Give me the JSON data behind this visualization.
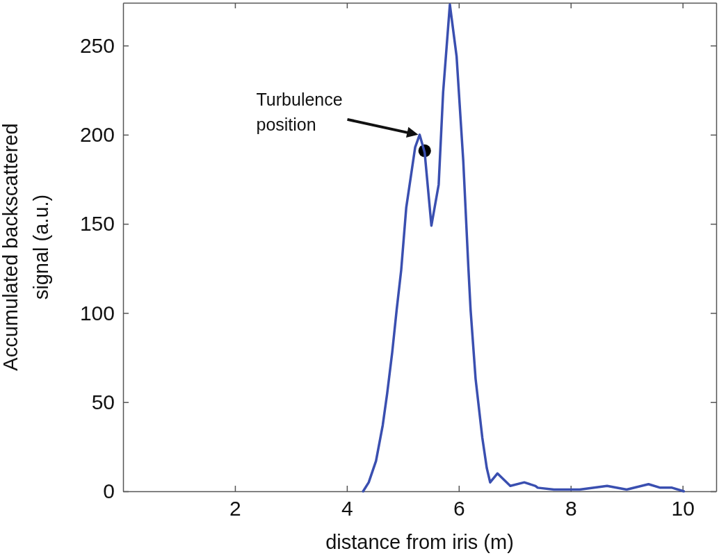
{
  "chart_data": {
    "type": "line",
    "xlabel": "distance from iris (m)",
    "ylabel": "Accumulated backscattered\nsignal (a.u.)",
    "xlim": [
      0,
      10.6
    ],
    "xticks": [
      2,
      4,
      6,
      8,
      10
    ],
    "ylim": [
      0,
      274
    ],
    "yticks": [
      0,
      50,
      100,
      150,
      200,
      250
    ],
    "grid": false,
    "line_style": "solid",
    "series": [
      {
        "color": "#3a4fb0",
        "x": [
          4.29,
          4.39,
          4.52,
          4.64,
          4.72,
          4.81,
          4.89,
          4.97,
          5.06,
          5.22,
          5.3,
          5.39,
          5.51,
          5.64,
          5.72,
          5.84,
          5.96,
          6.08,
          6.17,
          6.21,
          6.3,
          6.42,
          6.5,
          6.56,
          6.69,
          6.92,
          7.17,
          7.37,
          7.41,
          7.7,
          8.16,
          8.65,
          9.0,
          9.39,
          9.6,
          9.81,
          10.02
        ],
        "values": [
          0,
          5,
          17,
          37,
          55,
          78,
          102,
          124,
          159,
          193,
          200,
          190,
          149,
          172,
          224,
          273,
          244,
          185,
          126,
          102,
          63,
          30,
          13,
          5,
          10,
          3,
          5,
          3,
          2,
          1,
          1,
          3,
          1,
          4,
          2,
          2,
          0
        ]
      },
      {
        "type": "scatter",
        "color": "#000000",
        "marker": "circle",
        "x": [
          5.39
        ],
        "values": [
          191
        ]
      }
    ],
    "annotations": [
      {
        "text": "Turbulence\nposition",
        "x": 5.3,
        "y": 200
      }
    ]
  }
}
